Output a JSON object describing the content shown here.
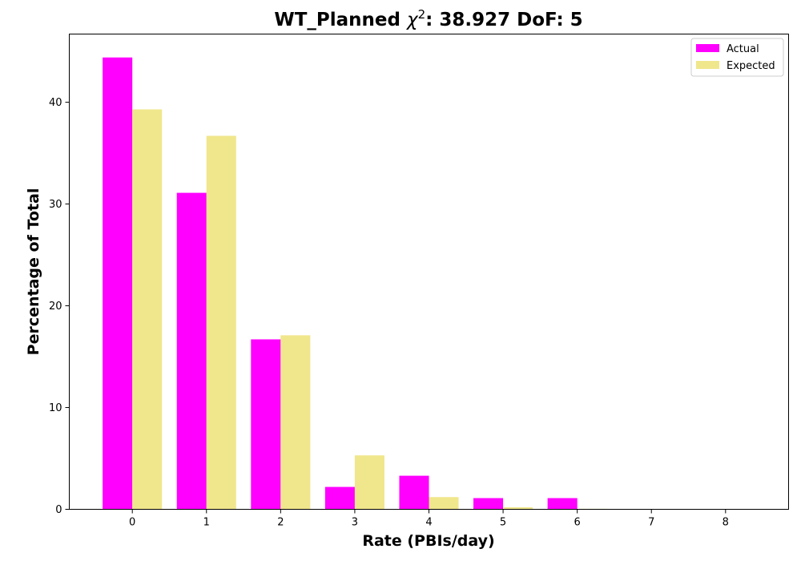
{
  "chart_data": {
    "type": "bar",
    "title_prefix": "WT_Planned ",
    "title_chi": "χ",
    "title_chi_sup": "2",
    "title_suffix": ": 38.927 DoF: 5",
    "xlabel": "Rate (PBIs/day)",
    "ylabel": "Percentage of Total",
    "categories": [
      "0",
      "1",
      "2",
      "3",
      "4",
      "5",
      "6",
      "7",
      "8"
    ],
    "series": [
      {
        "name": "Actual",
        "color": "#ff00ff",
        "values": [
          44.4,
          31.1,
          16.7,
          2.2,
          3.3,
          1.1,
          1.1,
          0,
          0
        ]
      },
      {
        "name": "Expected",
        "color": "#f0e68c",
        "values": [
          39.3,
          36.7,
          17.1,
          5.3,
          1.2,
          0.2,
          0.05,
          0,
          0
        ]
      }
    ],
    "xlim": [
      -0.85,
      8.85
    ],
    "ylim": [
      0,
      46.7
    ],
    "yticks": [
      0,
      10,
      20,
      30,
      40
    ],
    "grid": false,
    "legend_position": "top-right"
  }
}
